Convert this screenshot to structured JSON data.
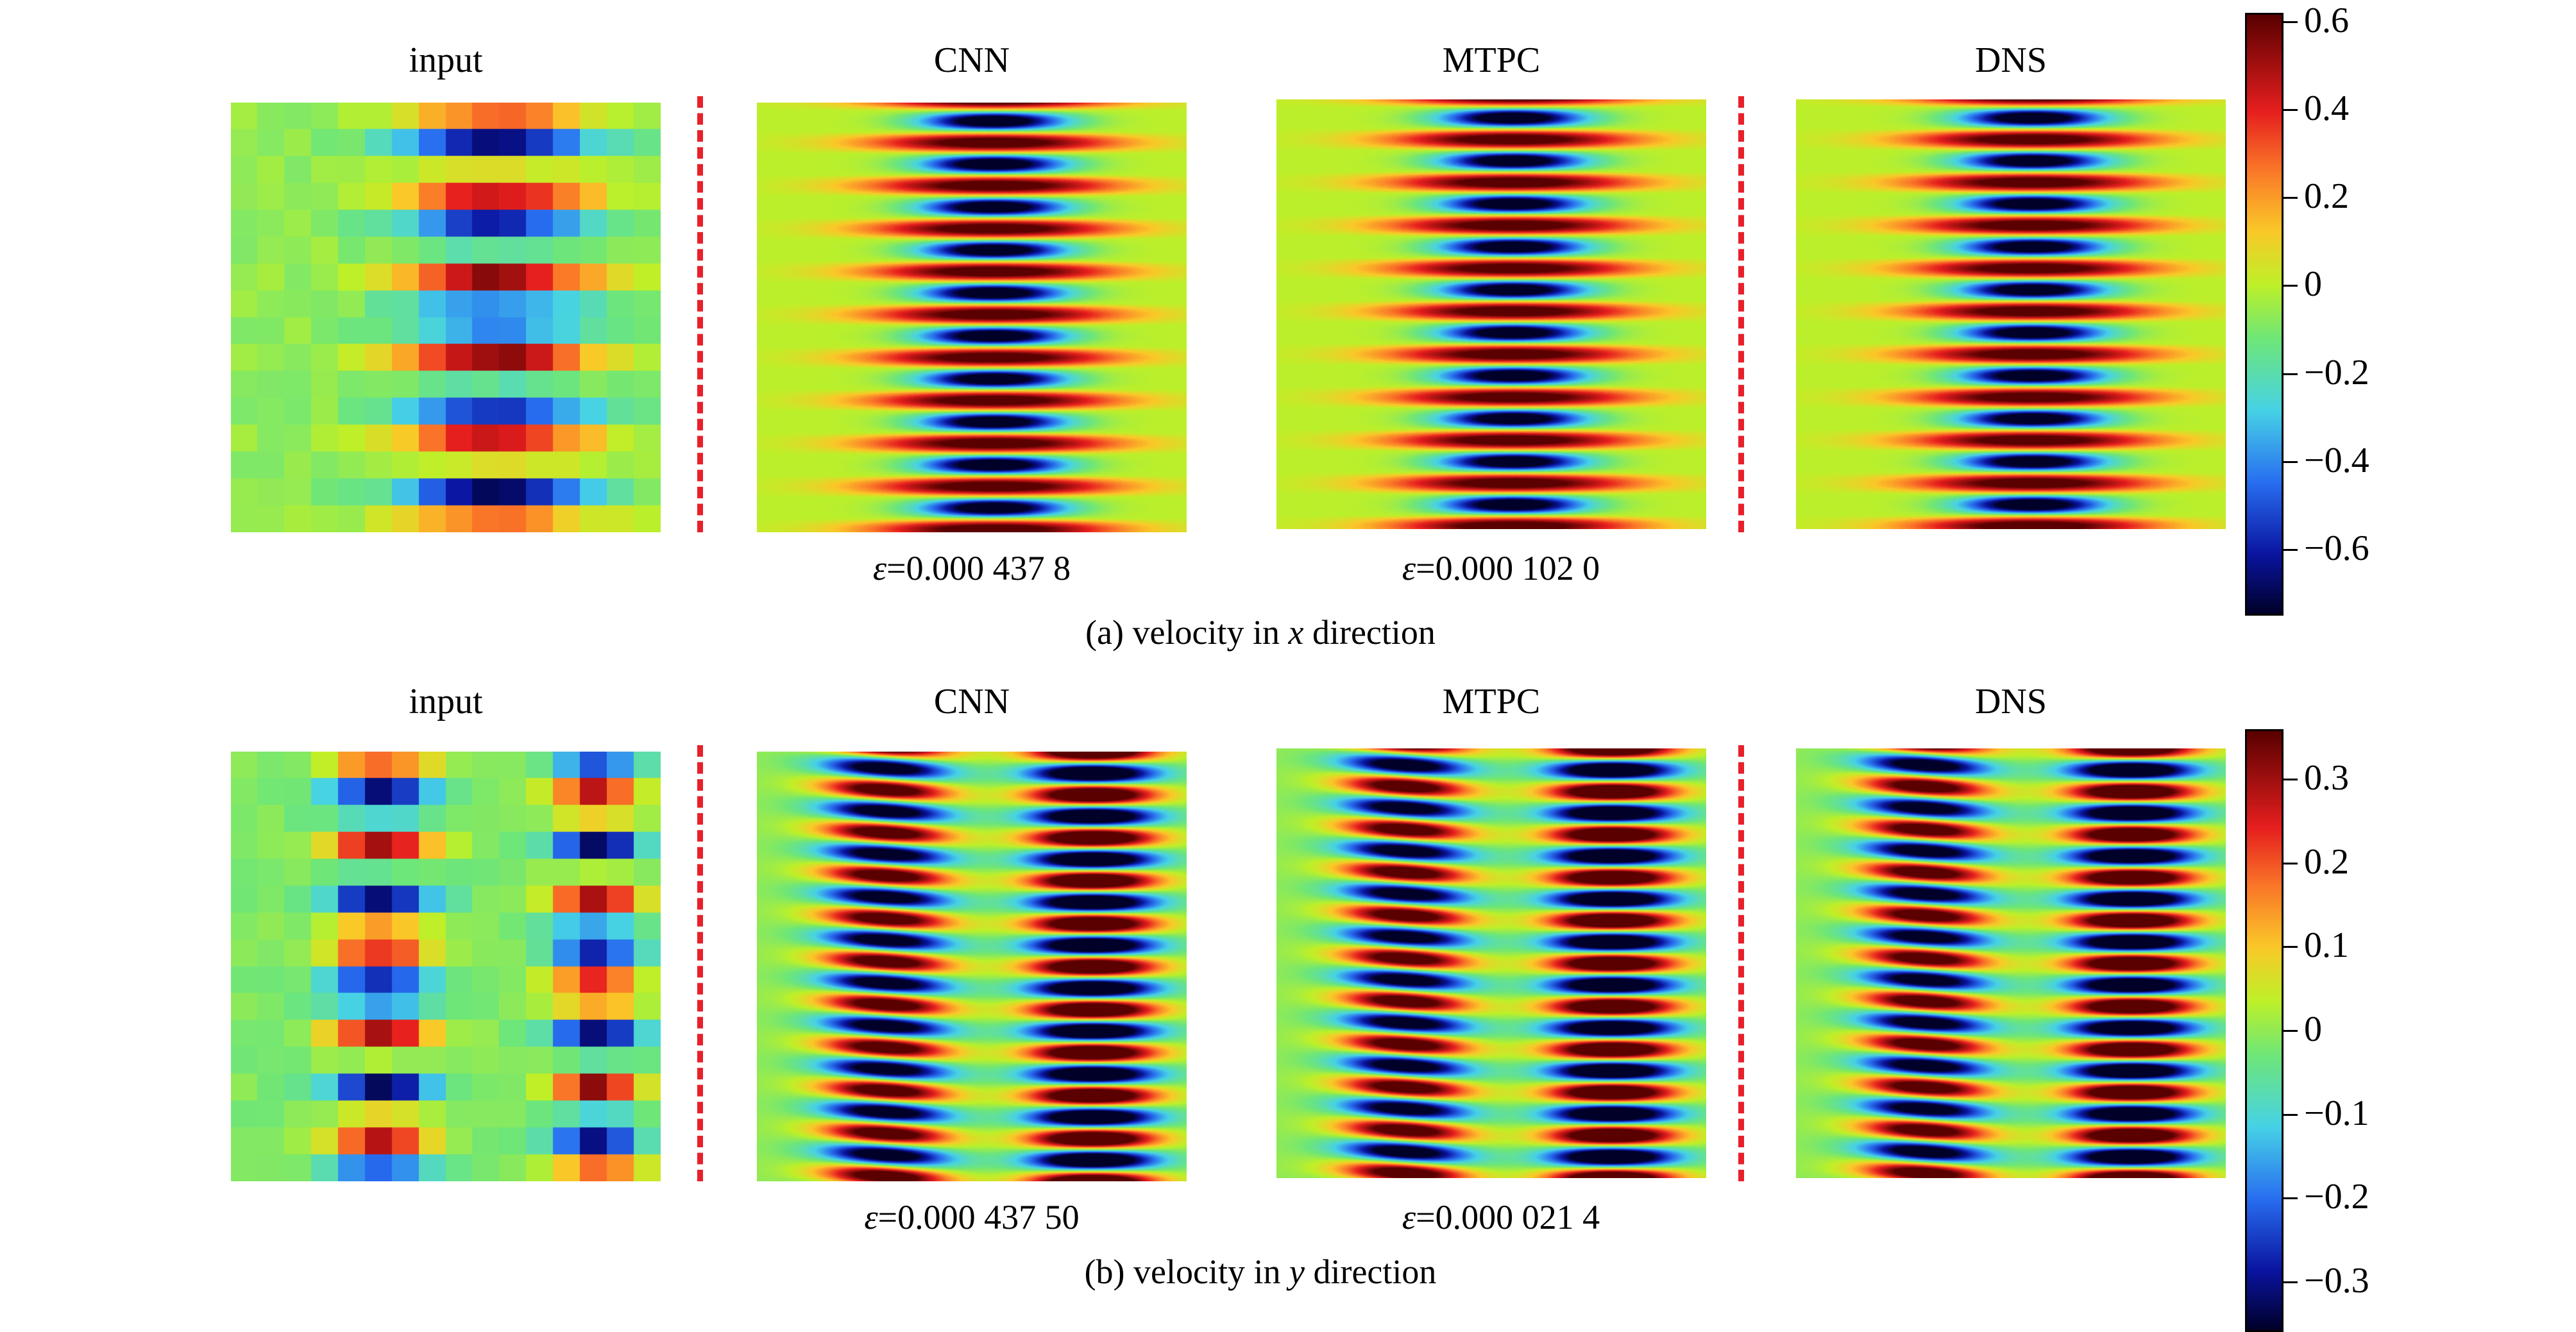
{
  "figure": {
    "rows": [
      {
        "id": "x",
        "caption_prefix": "(a) velocity in ",
        "caption_var": "x",
        "caption_suffix": " direction",
        "colorbar": {
          "range": [
            -0.75,
            0.62
          ],
          "ticks": [
            0.6,
            0.4,
            0.2,
            0,
            -0.2,
            -0.4,
            -0.6
          ],
          "tick_labels": [
            "0.6",
            "0.4",
            "0.2",
            "0",
            "−0.2",
            "−0.4",
            "−0.6"
          ]
        },
        "panels": [
          {
            "title": "input",
            "kind": "input"
          },
          {
            "title": "CNN",
            "kind": "field",
            "error_symbol": "ε",
            "error_text": "=0.000 437 8"
          },
          {
            "title": "MTPC",
            "kind": "field",
            "error_symbol": "ε",
            "error_text": "=0.000 102 0"
          },
          {
            "title": "DNS",
            "kind": "field",
            "error_symbol": "",
            "error_text": ""
          }
        ]
      },
      {
        "id": "y",
        "caption_prefix": "(b) velocity in ",
        "caption_var": "y",
        "caption_suffix": " direction",
        "colorbar": {
          "range": [
            -0.36,
            0.36
          ],
          "ticks": [
            0.3,
            0.2,
            0.1,
            0,
            -0.1,
            -0.2,
            -0.3
          ],
          "tick_labels": [
            "0.3",
            "0.2",
            "0.1",
            "0",
            "−0.1",
            "−0.2",
            "−0.3"
          ]
        },
        "panels": [
          {
            "title": "input",
            "kind": "input"
          },
          {
            "title": "CNN",
            "kind": "field",
            "error_symbol": "ε",
            "error_text": "=0.000 437 50"
          },
          {
            "title": "MTPC",
            "kind": "field",
            "error_symbol": "ε",
            "error_text": "=0.000 021 4"
          },
          {
            "title": "DNS",
            "kind": "field",
            "error_symbol": "",
            "error_text": ""
          }
        ]
      }
    ]
  },
  "chart_data": [
    {
      "type": "heatmap",
      "title": "",
      "subplots": [
        "input",
        "CNN",
        "MTPC",
        "DNS"
      ],
      "errors": {
        "CNN": 0.0004378,
        "MTPC": 0.000102
      },
      "caption": "(a) velocity in x direction",
      "colorbar_range": [
        -0.75,
        0.62
      ],
      "colormap": "jet",
      "grid": false
    },
    {
      "type": "heatmap",
      "title": "",
      "subplots": [
        "input",
        "CNN",
        "MTPC",
        "DNS"
      ],
      "errors": {
        "CNN": 0.0004375,
        "MTPC": 2.14e-05
      },
      "caption": "(b) velocity in y direction",
      "colorbar_range": [
        -0.36,
        0.36
      ],
      "colormap": "jet",
      "grid": false
    }
  ]
}
